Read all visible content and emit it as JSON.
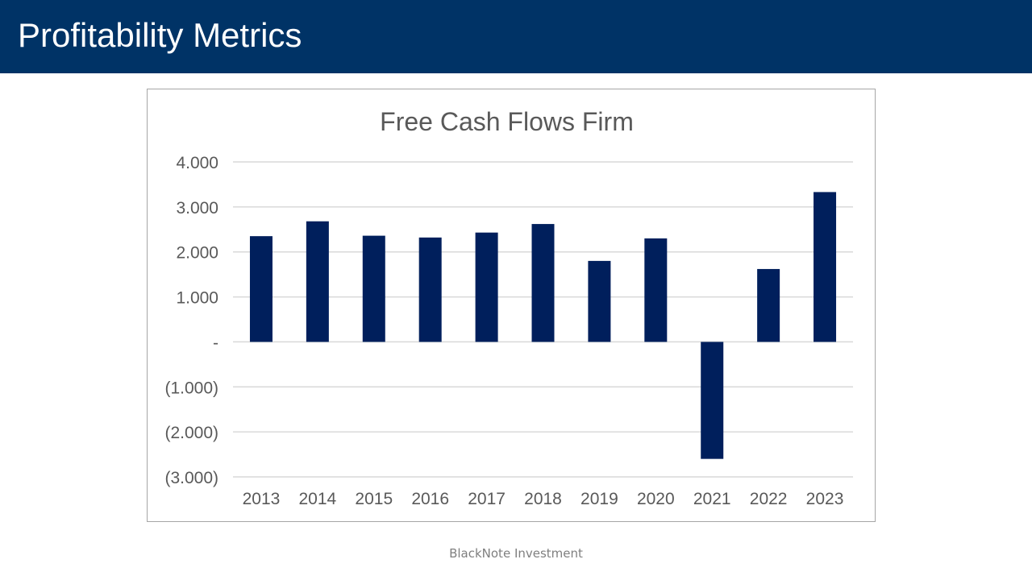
{
  "header": {
    "title": "Profitability Metrics"
  },
  "footer": {
    "text": "BlackNote Investment"
  },
  "colors": {
    "header_bg": "#003366",
    "bar": "#001f5c",
    "grid": "#d9d9d9",
    "text": "#595959"
  },
  "chart_data": {
    "type": "bar",
    "title": "Free Cash Flows Firm",
    "xlabel": "",
    "ylabel": "",
    "categories": [
      "2013",
      "2014",
      "2015",
      "2016",
      "2017",
      "2018",
      "2019",
      "2020",
      "2021",
      "2022",
      "2023"
    ],
    "values": [
      2350,
      2680,
      2360,
      2320,
      2430,
      2620,
      1800,
      2300,
      -2600,
      1620,
      3330
    ],
    "ylim": [
      -3000,
      4000
    ],
    "yticks": [
      4000,
      3000,
      2000,
      1000,
      0,
      -1000,
      -2000,
      -3000
    ],
    "ytick_labels": [
      "4.000",
      "3.000",
      "2.000",
      "1.000",
      "-",
      "(1.000)",
      "(2.000)",
      "(3.000)"
    ],
    "grid": true,
    "legend": "none"
  }
}
